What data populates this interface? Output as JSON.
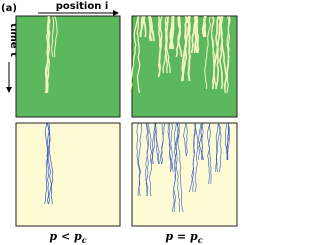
{
  "figure": {
    "panel": "(a)",
    "x_axis": "position i",
    "y_axis": "time t",
    "captions": [
      {
        "main": "p < p",
        "sub": "c"
      },
      {
        "main": "p = p",
        "sub": "c"
      }
    ]
  }
}
